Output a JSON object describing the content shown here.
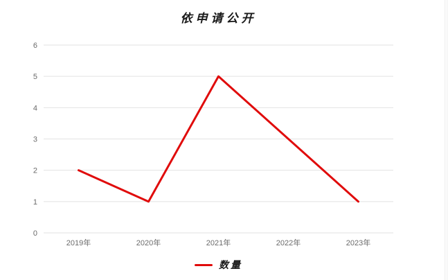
{
  "chart_data": {
    "type": "line",
    "title": "依申请公开",
    "categories": [
      "2019年",
      "2020年",
      "2021年",
      "2022年",
      "2023年"
    ],
    "series": [
      {
        "name": "数量",
        "values": [
          2,
          1,
          5,
          3,
          1
        ],
        "color": "#e00b0b"
      }
    ],
    "xlabel": "",
    "ylabel": "",
    "ylim": [
      0,
      6
    ],
    "y_step": 1,
    "grid": true,
    "legend_position": "bottom",
    "colors": {
      "line": "#e00b0b",
      "gridline": "#e2e2e2",
      "tick_label": "#6a6a6a",
      "title": "#1a1a1a",
      "background": "#ffffff"
    }
  }
}
